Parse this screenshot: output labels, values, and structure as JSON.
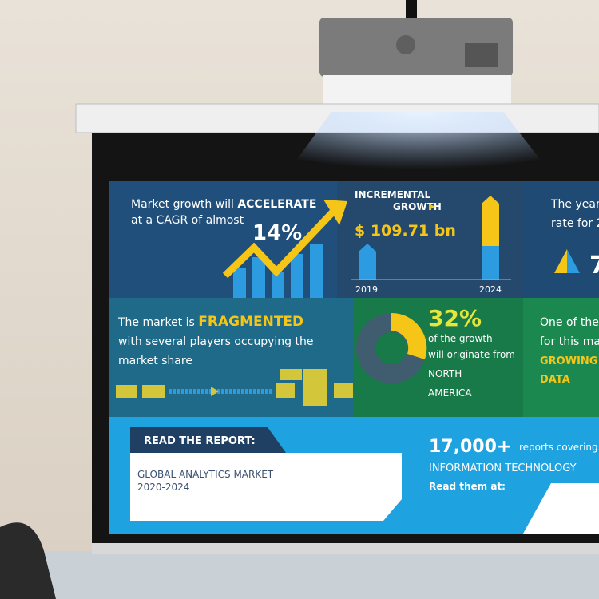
{
  "panels": {
    "growth": {
      "line1": "Market growth will",
      "emphasis": "ACCELERATE",
      "line2": "at a CAGR of almost",
      "rate": "14%"
    },
    "incremental": {
      "title1": "INCREMENTAL",
      "title2": "GROWTH",
      "amount": "$ 109.71 bn",
      "start_year": "2019",
      "end_year": "2024"
    },
    "year_cut": {
      "line1": "The year",
      "line2": "rate for 2",
      "figure": "7"
    },
    "fragmented": {
      "lead": "The market is",
      "emphasis": "FRAGMENTED",
      "line2": "with several players occupying the",
      "line3": "market share"
    },
    "region": {
      "share": "32%",
      "line1": "of the growth",
      "line2": "will originate from",
      "line3": "NORTH",
      "line4": "AMERICA"
    },
    "segment_cut": {
      "line1": "One of the",
      "line2": "for this ma",
      "emphasis1": "GROWING",
      "emphasis2": "DATA"
    },
    "report": {
      "label": "READ THE REPORT:",
      "title": "GLOBAL ANALYTICS MARKET",
      "years": "2020-2024"
    },
    "catalog": {
      "count": "17,000+",
      "tail": "reports covering",
      "topic": "INFORMATION TECHNOLOGY",
      "cta": "Read them at:"
    }
  }
}
